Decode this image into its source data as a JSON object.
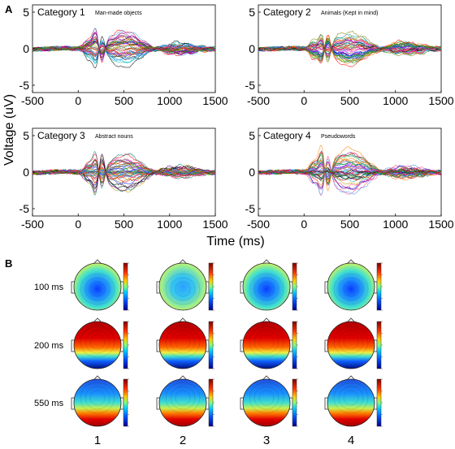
{
  "panel_labels": {
    "a": "A",
    "b": "B"
  },
  "erp": {
    "ylabel": "Voltage (uV)",
    "xlabel": "Time (ms)",
    "x_ticks": [
      "-500",
      "0",
      "500",
      "1000",
      "1500"
    ],
    "y_ticks": [
      "5",
      "0",
      "-5"
    ]
  },
  "topo": {
    "row_labels": [
      "100 ms",
      "200 ms",
      "550 ms"
    ],
    "col_labels": [
      "1",
      "2",
      "3",
      "4"
    ]
  },
  "colors": {
    "ink": "#000000",
    "zero_line": "#000000"
  },
  "chart_data": [
    {
      "type": "line",
      "title": "Category 1",
      "subtitle": "Man-made objects",
      "xlim": [
        -500,
        1500
      ],
      "ylim": [
        -6,
        6
      ],
      "peaks": [
        {
          "t": 100,
          "v": 1.5
        },
        {
          "t": 200,
          "v": 4.2
        },
        {
          "t": 250,
          "v": -4.6
        },
        {
          "t": 500,
          "v": 3.3
        },
        {
          "t": 1100,
          "v": -1.1
        }
      ]
    },
    {
      "type": "line",
      "title": "Category 2",
      "subtitle": "Animals (Kept in mind)",
      "xlim": [
        -500,
        1500
      ],
      "ylim": [
        -6,
        6
      ],
      "peaks": [
        {
          "t": 100,
          "v": 1.5
        },
        {
          "t": 200,
          "v": 3.5
        },
        {
          "t": 250,
          "v": -4.8
        },
        {
          "t": 500,
          "v": 3.2
        },
        {
          "t": 1100,
          "v": -1.3
        }
      ]
    },
    {
      "type": "line",
      "title": "Category 3",
      "subtitle": "Abstract nouns",
      "xlim": [
        -500,
        1500
      ],
      "ylim": [
        -6,
        6
      ],
      "peaks": [
        {
          "t": 100,
          "v": 1.3
        },
        {
          "t": 200,
          "v": 4.0
        },
        {
          "t": 250,
          "v": -5.0
        },
        {
          "t": 500,
          "v": 3.0
        },
        {
          "t": 1100,
          "v": -0.9
        }
      ]
    },
    {
      "type": "line",
      "title": "Category 4",
      "subtitle": "Pseudowords",
      "xlim": [
        -500,
        1500
      ],
      "ylim": [
        -6,
        6
      ],
      "peaks": [
        {
          "t": 100,
          "v": 1.5
        },
        {
          "t": 200,
          "v": 4.4
        },
        {
          "t": 250,
          "v": -4.9
        },
        {
          "t": 500,
          "v": 3.5
        },
        {
          "t": 1100,
          "v": -1.0
        }
      ]
    }
  ]
}
